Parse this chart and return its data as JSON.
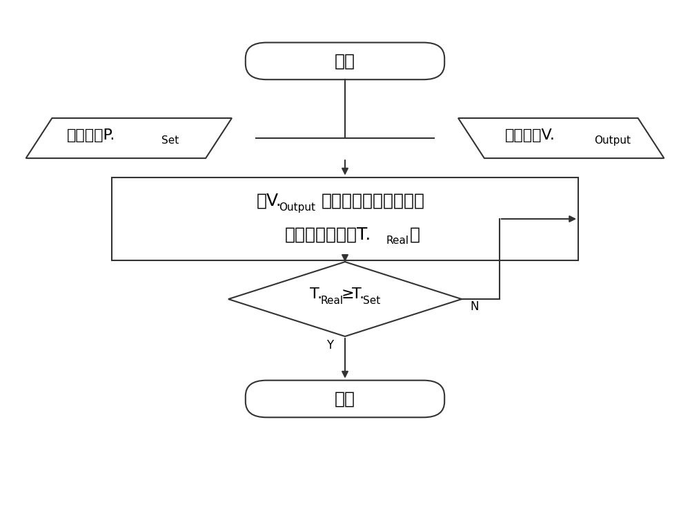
{
  "bg_color": "#ffffff",
  "line_color": "#333333",
  "fill_color": "#ffffff",
  "text_color": "#000000",
  "start_label": "开始",
  "end_label": "结束",
  "left_label_main": "压制时间P.",
  "left_label_sub": "Set",
  "right_label_main": "压制速度V.",
  "right_label_sub": "Output",
  "proc_l1_main": "以V.",
  "proc_l1_sub": "Output",
  "proc_l1_tail": "指令进行压制，对压制",
  "proc_l2_main": "时间计时，记为T.",
  "proc_l2_sub": "Real",
  "proc_l2_tail": "。",
  "diam_t1": "T.",
  "diam_sub1": "Real",
  "diam_gte": "≥",
  "diam_t2": "T.",
  "diam_sub2": "Set",
  "yes_label": "Y",
  "no_label": "N",
  "lw": 1.5,
  "fs_main": 18,
  "fs_sub": 11,
  "fs_label": 16,
  "fs_diam": 16,
  "fs_yn": 12
}
